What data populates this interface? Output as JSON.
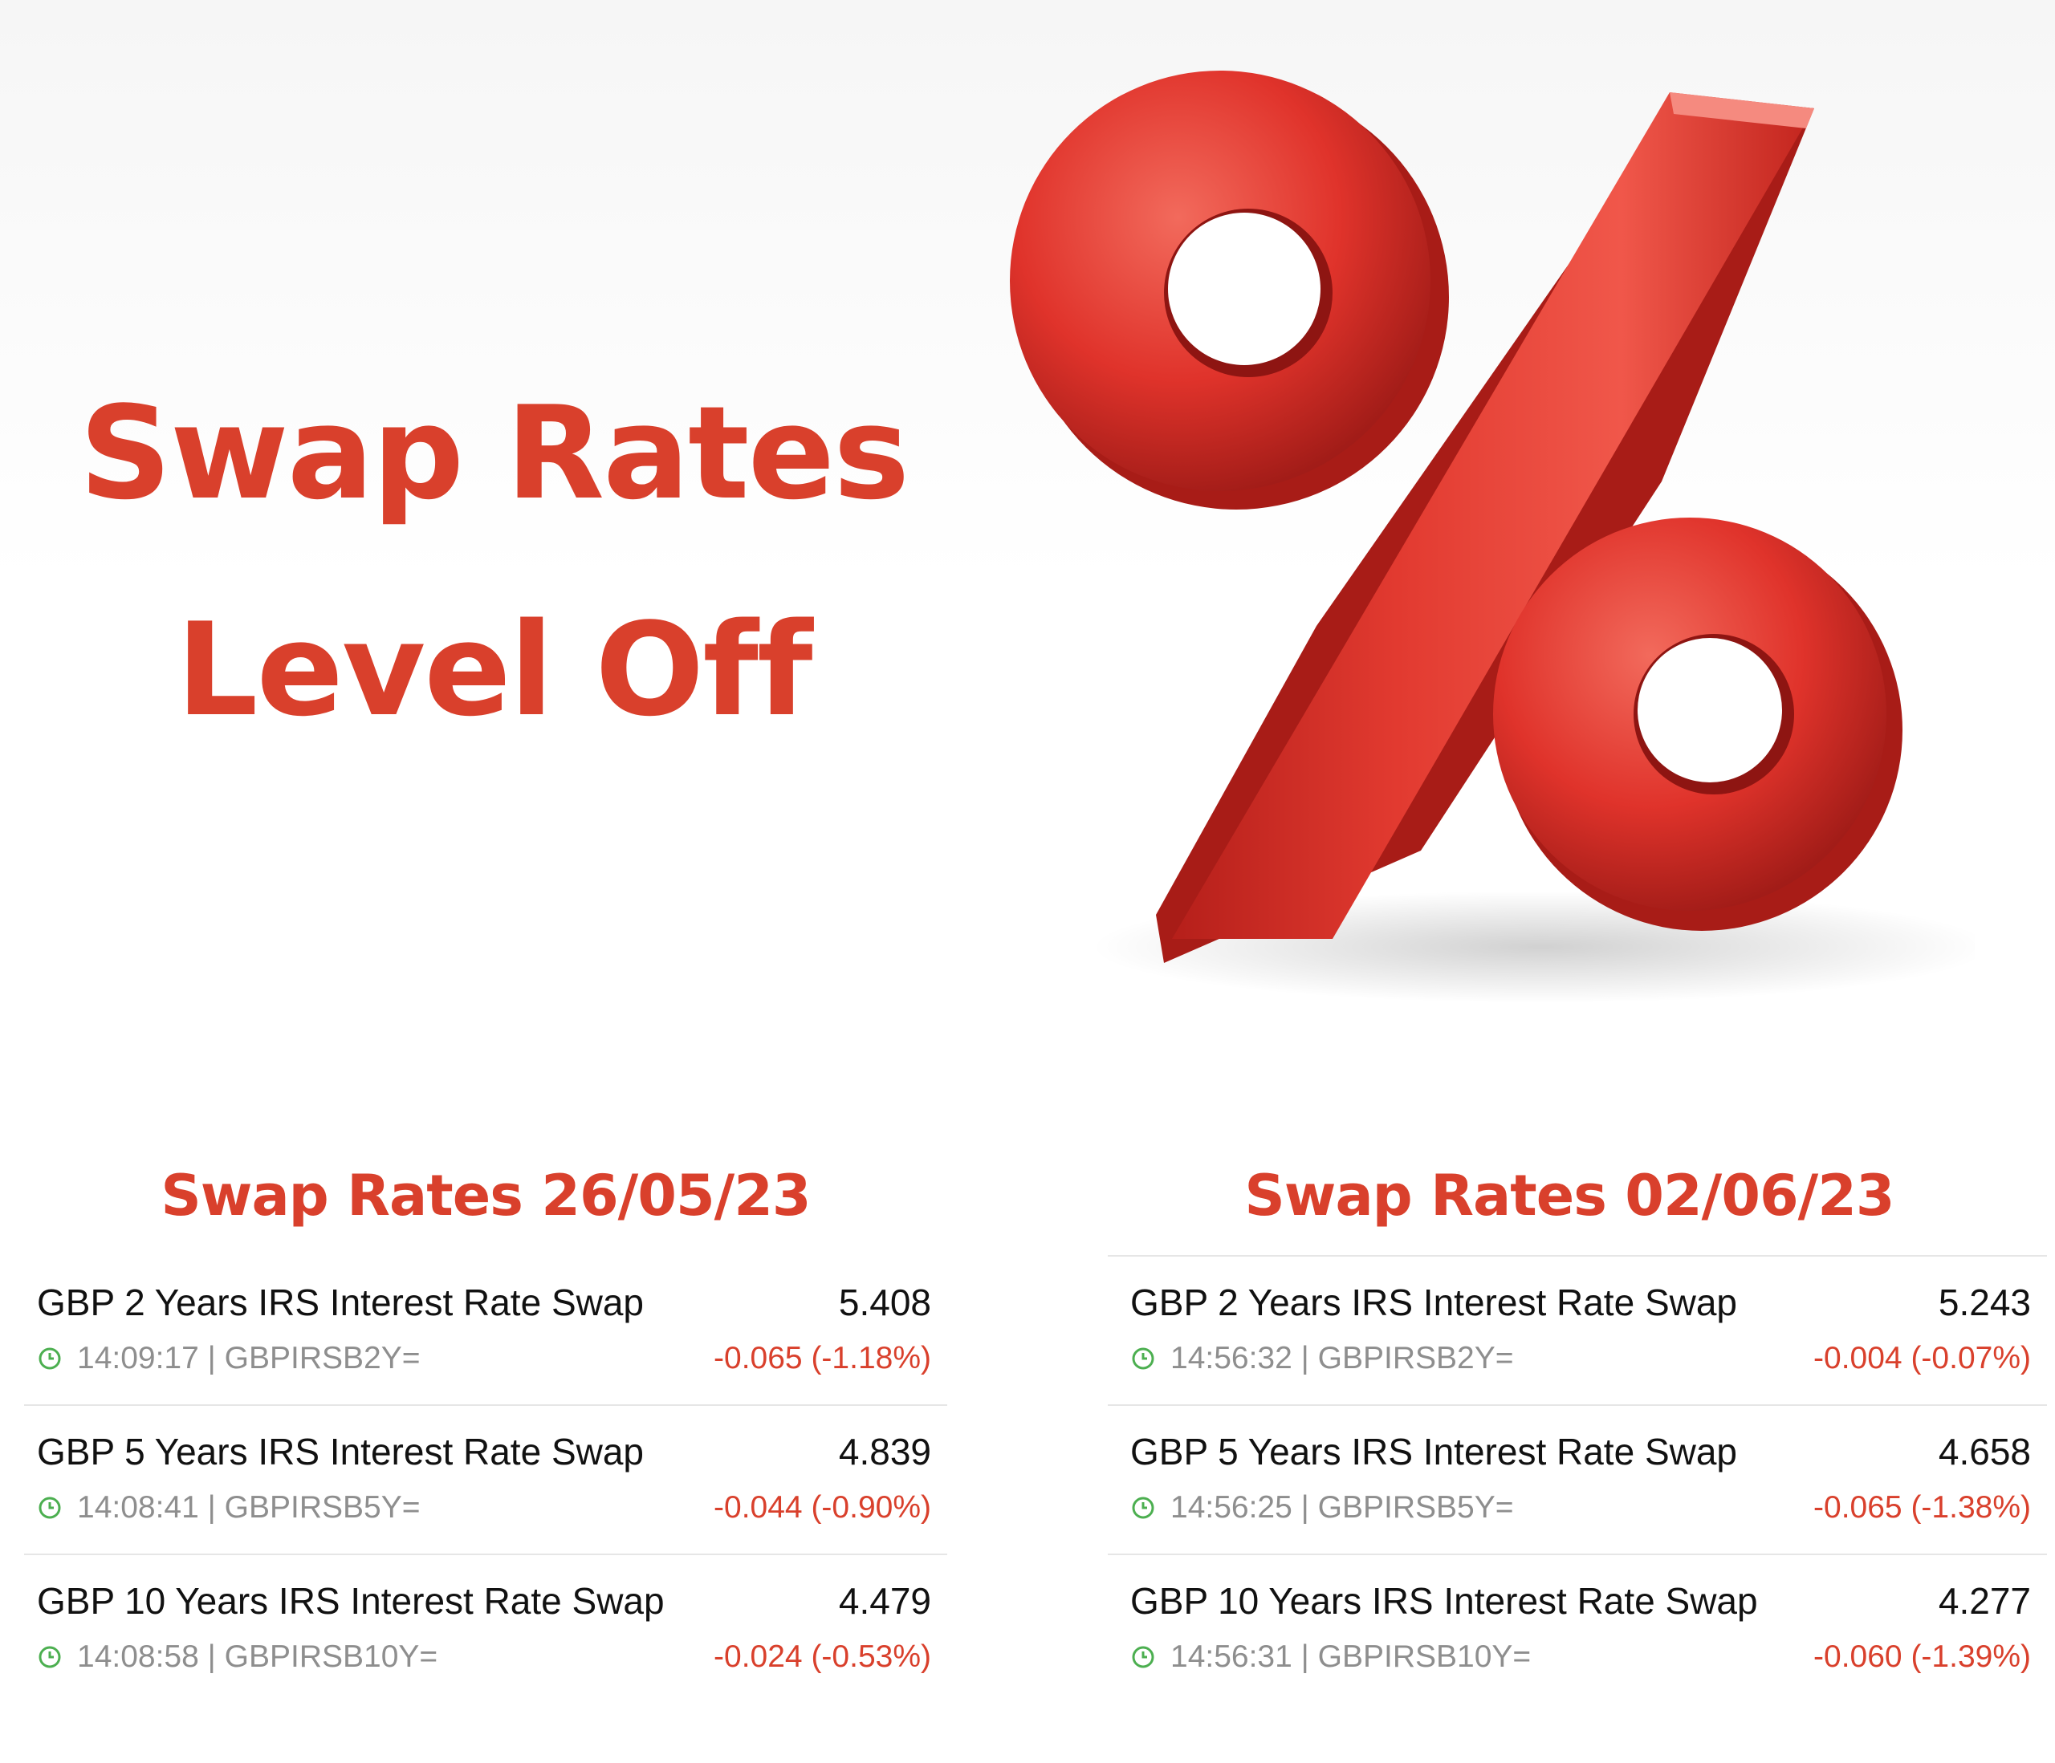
{
  "headline": {
    "line1": "Swap Rates",
    "line2": "Level Off"
  },
  "colors": {
    "accent": "#d9402c",
    "text": "#111111",
    "muted": "#8e8e8e",
    "clock": "#4caf50"
  },
  "art": {
    "icon": "percent-sign-3d"
  },
  "panels": [
    {
      "title": "Swap Rates 26/05/23",
      "rows": [
        {
          "name": "GBP 2 Years IRS Interest Rate Swap",
          "value": "5.408",
          "time": "14:09:17",
          "sep": "|",
          "code": "GBPIRSB2Y=",
          "change": "-0.065 (-1.18%)"
        },
        {
          "name": "GBP 5 Years IRS Interest Rate Swap",
          "value": "4.839",
          "time": "14:08:41",
          "sep": "|",
          "code": "GBPIRSB5Y=",
          "change": "-0.044 (-0.90%)"
        },
        {
          "name": "GBP 10 Years IRS Interest Rate Swap",
          "value": "4.479",
          "time": "14:08:58",
          "sep": "|",
          "code": "GBPIRSB10Y=",
          "change": "-0.024 (-0.53%)"
        }
      ]
    },
    {
      "title": "Swap Rates 02/06/23",
      "rows": [
        {
          "name": "GBP 2 Years IRS Interest Rate Swap",
          "value": "5.243",
          "time": "14:56:32",
          "sep": "|",
          "code": "GBPIRSB2Y=",
          "change": "-0.004 (-0.07%)"
        },
        {
          "name": "GBP 5 Years IRS Interest Rate Swap",
          "value": "4.658",
          "time": "14:56:25",
          "sep": "|",
          "code": "GBPIRSB5Y=",
          "change": "-0.065 (-1.38%)"
        },
        {
          "name": "GBP 10 Years IRS Interest Rate Swap",
          "value": "4.277",
          "time": "14:56:31",
          "sep": "|",
          "code": "GBPIRSB10Y=",
          "change": "-0.060 (-1.39%)"
        }
      ]
    }
  ]
}
